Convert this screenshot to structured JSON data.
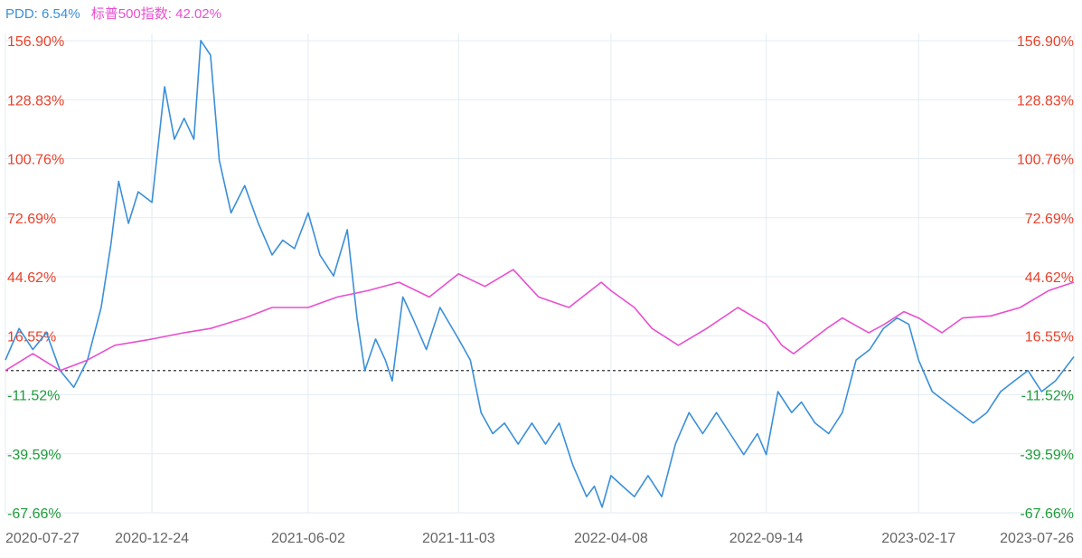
{
  "colors": {
    "pdd": "#3a8fd9",
    "sp500": "#e84fd0",
    "positive": "#e8412b",
    "negative": "#1e9b3a",
    "grid": "#e3ecf3",
    "baseline": "#333333",
    "xlabel": "#666666"
  },
  "chart_data": {
    "type": "line",
    "y_unit": "%",
    "y_ticks": [
      "156.90%",
      "128.83%",
      "100.76%",
      "72.69%",
      "44.62%",
      "16.55%",
      "-11.52%",
      "-39.59%",
      "-67.66%"
    ],
    "y_tick_values": [
      156.9,
      128.83,
      100.76,
      72.69,
      44.62,
      16.55,
      -11.52,
      -39.59,
      -67.66
    ],
    "ylim": [
      -67.66,
      156.9
    ],
    "baseline": 0,
    "x_ticks": [
      "2020-07-27",
      "2020-12-24",
      "2021-06-02",
      "2021-11-03",
      "2022-04-08",
      "2022-09-14",
      "2023-02-17",
      "2023-07-26"
    ],
    "xlim": [
      "2020-07-27",
      "2023-07-26"
    ],
    "grid": true,
    "legend_position": "top-left",
    "series": [
      {
        "name": "PDD",
        "color_key": "pdd",
        "last_value": "6.54%",
        "points": [
          [
            "2020-07-27",
            5
          ],
          [
            "2020-08-10",
            20
          ],
          [
            "2020-08-24",
            10
          ],
          [
            "2020-09-07",
            18
          ],
          [
            "2020-09-21",
            0
          ],
          [
            "2020-10-05",
            -8
          ],
          [
            "2020-10-19",
            5
          ],
          [
            "2020-11-02",
            30
          ],
          [
            "2020-11-12",
            60
          ],
          [
            "2020-11-20",
            90
          ],
          [
            "2020-11-30",
            70
          ],
          [
            "2020-12-10",
            85
          ],
          [
            "2020-12-24",
            80
          ],
          [
            "2021-01-06",
            135
          ],
          [
            "2021-01-16",
            110
          ],
          [
            "2021-01-26",
            120
          ],
          [
            "2021-02-05",
            110
          ],
          [
            "2021-02-12",
            157
          ],
          [
            "2021-02-22",
            150
          ],
          [
            "2021-03-03",
            100
          ],
          [
            "2021-03-15",
            75
          ],
          [
            "2021-03-29",
            88
          ],
          [
            "2021-04-12",
            70
          ],
          [
            "2021-04-26",
            55
          ],
          [
            "2021-05-07",
            62
          ],
          [
            "2021-05-19",
            58
          ],
          [
            "2021-06-02",
            75
          ],
          [
            "2021-06-14",
            55
          ],
          [
            "2021-06-28",
            45
          ],
          [
            "2021-07-12",
            67
          ],
          [
            "2021-07-22",
            25
          ],
          [
            "2021-07-30",
            0
          ],
          [
            "2021-08-10",
            15
          ],
          [
            "2021-08-20",
            5
          ],
          [
            "2021-08-27",
            -5
          ],
          [
            "2021-09-07",
            35
          ],
          [
            "2021-09-17",
            25
          ],
          [
            "2021-10-01",
            10
          ],
          [
            "2021-10-15",
            30
          ],
          [
            "2021-11-03",
            15
          ],
          [
            "2021-11-15",
            5
          ],
          [
            "2021-11-26",
            -20
          ],
          [
            "2021-12-08",
            -30
          ],
          [
            "2021-12-20",
            -25
          ],
          [
            "2022-01-03",
            -35
          ],
          [
            "2022-01-17",
            -25
          ],
          [
            "2022-01-31",
            -35
          ],
          [
            "2022-02-14",
            -25
          ],
          [
            "2022-02-28",
            -45
          ],
          [
            "2022-03-14",
            -60
          ],
          [
            "2022-03-22",
            -55
          ],
          [
            "2022-03-30",
            -65
          ],
          [
            "2022-04-08",
            -50
          ],
          [
            "2022-04-20",
            -55
          ],
          [
            "2022-05-02",
            -60
          ],
          [
            "2022-05-16",
            -50
          ],
          [
            "2022-05-30",
            -60
          ],
          [
            "2022-06-13",
            -35
          ],
          [
            "2022-06-27",
            -20
          ],
          [
            "2022-07-11",
            -30
          ],
          [
            "2022-07-25",
            -20
          ],
          [
            "2022-08-08",
            -30
          ],
          [
            "2022-08-22",
            -40
          ],
          [
            "2022-09-05",
            -30
          ],
          [
            "2022-09-14",
            -40
          ],
          [
            "2022-09-26",
            -10
          ],
          [
            "2022-10-10",
            -20
          ],
          [
            "2022-10-20",
            -15
          ],
          [
            "2022-11-03",
            -25
          ],
          [
            "2022-11-17",
            -30
          ],
          [
            "2022-12-01",
            -20
          ],
          [
            "2022-12-15",
            5
          ],
          [
            "2022-12-29",
            10
          ],
          [
            "2023-01-12",
            20
          ],
          [
            "2023-01-26",
            25
          ],
          [
            "2023-02-07",
            22
          ],
          [
            "2023-02-17",
            5
          ],
          [
            "2023-03-03",
            -10
          ],
          [
            "2023-03-17",
            -15
          ],
          [
            "2023-03-31",
            -20
          ],
          [
            "2023-04-14",
            -25
          ],
          [
            "2023-04-28",
            -20
          ],
          [
            "2023-05-12",
            -10
          ],
          [
            "2023-05-26",
            -5
          ],
          [
            "2023-06-09",
            0
          ],
          [
            "2023-06-23",
            -10
          ],
          [
            "2023-07-07",
            -5
          ],
          [
            "2023-07-26",
            6.54
          ]
        ]
      },
      {
        "name": "标普500指数",
        "color_key": "sp500",
        "last_value": "42.02%",
        "points": [
          [
            "2020-07-27",
            0
          ],
          [
            "2020-08-24",
            8
          ],
          [
            "2020-09-21",
            0
          ],
          [
            "2020-10-19",
            5
          ],
          [
            "2020-11-16",
            12
          ],
          [
            "2020-12-24",
            15
          ],
          [
            "2021-01-26",
            18
          ],
          [
            "2021-02-22",
            20
          ],
          [
            "2021-03-29",
            25
          ],
          [
            "2021-04-26",
            30
          ],
          [
            "2021-06-02",
            30
          ],
          [
            "2021-07-02",
            35
          ],
          [
            "2021-08-02",
            38
          ],
          [
            "2021-09-03",
            42
          ],
          [
            "2021-10-04",
            35
          ],
          [
            "2021-11-03",
            46
          ],
          [
            "2021-11-30",
            40
          ],
          [
            "2021-12-29",
            48
          ],
          [
            "2022-01-24",
            35
          ],
          [
            "2022-02-24",
            30
          ],
          [
            "2022-03-29",
            42
          ],
          [
            "2022-04-08",
            38
          ],
          [
            "2022-05-02",
            30
          ],
          [
            "2022-05-20",
            20
          ],
          [
            "2022-06-16",
            12
          ],
          [
            "2022-07-15",
            20
          ],
          [
            "2022-08-16",
            30
          ],
          [
            "2022-09-14",
            22
          ],
          [
            "2022-09-30",
            12
          ],
          [
            "2022-10-12",
            8
          ],
          [
            "2022-11-15",
            20
          ],
          [
            "2022-12-01",
            25
          ],
          [
            "2022-12-28",
            18
          ],
          [
            "2023-01-13",
            22
          ],
          [
            "2023-02-02",
            28
          ],
          [
            "2023-02-17",
            25
          ],
          [
            "2023-03-13",
            18
          ],
          [
            "2023-04-03",
            25
          ],
          [
            "2023-05-02",
            26
          ],
          [
            "2023-06-01",
            30
          ],
          [
            "2023-06-30",
            38
          ],
          [
            "2023-07-26",
            42.02
          ]
        ]
      }
    ]
  }
}
